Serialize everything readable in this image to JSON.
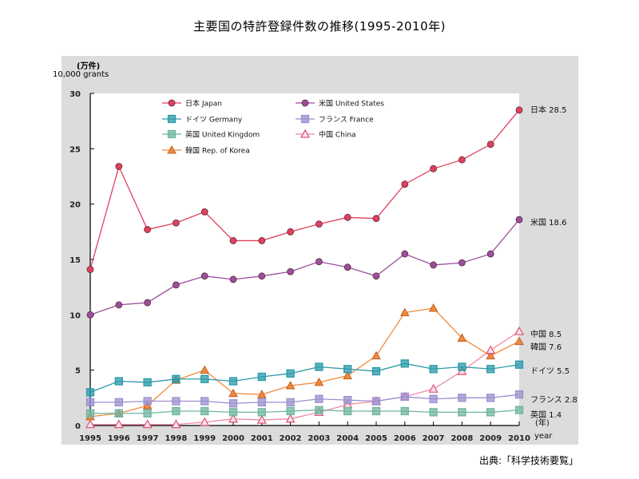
{
  "title": "主要国の特許登録件数の推移(1995-2010年)",
  "source": "出典:「科学技術要覧」",
  "chart_data": {
    "type": "line",
    "title": "主要国の特許登録件数の推移(1995-2010年)",
    "ylabel_ja": "(万件)",
    "ylabel_en": "10,000 grants",
    "xlabel_ja": "(年)",
    "xlabel_en": "year",
    "ylim": [
      0,
      30
    ],
    "yticks": [
      0,
      5,
      10,
      15,
      20,
      25,
      30
    ],
    "grid": false,
    "legend_position": "top-left-inside",
    "x": [
      1995,
      1996,
      1997,
      1998,
      1999,
      2000,
      2001,
      2002,
      2003,
      2004,
      2005,
      2006,
      2007,
      2008,
      2009,
      2010
    ],
    "series": [
      {
        "key": "japan",
        "name": "日本 Japan",
        "end_label": "日本 28.5",
        "color": "#e0405e",
        "marker": "circle",
        "values": [
          14.1,
          23.4,
          17.7,
          18.3,
          19.3,
          16.7,
          16.7,
          17.5,
          18.2,
          18.8,
          18.7,
          21.8,
          23.2,
          24.0,
          25.4,
          28.5
        ]
      },
      {
        "key": "us",
        "name": "米国 United States",
        "end_label": "米国 18.6",
        "color": "#9b4f9c",
        "marker": "circle",
        "values": [
          10.0,
          10.9,
          11.1,
          12.7,
          13.5,
          13.2,
          13.5,
          13.9,
          14.8,
          14.3,
          13.5,
          15.5,
          14.5,
          14.7,
          15.5,
          18.6
        ]
      },
      {
        "key": "germany",
        "name": "ドイツ Germany",
        "end_label": "ドイツ 5.5",
        "color": "#2a9aa8",
        "marker": "square",
        "values": [
          3.0,
          4.0,
          3.9,
          4.2,
          4.2,
          4.0,
          4.4,
          4.7,
          5.3,
          5.1,
          4.9,
          5.6,
          5.1,
          5.3,
          5.1,
          5.5
        ]
      },
      {
        "key": "france",
        "name": "フランス France",
        "end_label": "フランス 2.8",
        "color": "#9b8fcf",
        "marker": "square",
        "values": [
          2.1,
          2.1,
          2.2,
          2.2,
          2.2,
          2.0,
          2.1,
          2.1,
          2.4,
          2.3,
          2.2,
          2.6,
          2.4,
          2.5,
          2.5,
          2.8
        ]
      },
      {
        "key": "uk",
        "name": "英国 United Kingdom",
        "end_label": "英国 1.4",
        "color": "#6fb5a0",
        "marker": "square",
        "values": [
          1.1,
          1.1,
          1.1,
          1.3,
          1.3,
          1.2,
          1.2,
          1.3,
          1.4,
          1.3,
          1.3,
          1.3,
          1.2,
          1.2,
          1.2,
          1.4
        ]
      },
      {
        "key": "china",
        "name": "中国 China",
        "end_label": "中国 8.5",
        "color": "#f08aa0",
        "marker": "triangle-open",
        "values": [
          0.1,
          0.1,
          0.1,
          0.1,
          0.3,
          0.6,
          0.5,
          0.6,
          1.2,
          1.9,
          2.2,
          2.6,
          3.3,
          4.9,
          6.8,
          8.5
        ]
      },
      {
        "key": "korea",
        "name": "韓国 Rep. of Korea",
        "end_label": "韓国 7.6",
        "color": "#f08a3a",
        "marker": "triangle",
        "values": [
          0.8,
          1.1,
          1.8,
          4.1,
          5.0,
          2.9,
          2.8,
          3.6,
          3.9,
          4.5,
          6.3,
          10.2,
          10.6,
          7.9,
          6.3,
          7.6
        ]
      }
    ]
  }
}
